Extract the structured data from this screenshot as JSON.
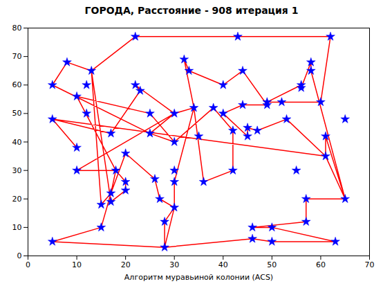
{
  "chart_data": {
    "type": "line",
    "title": "ГОРОДА, Расстояние - 908 итерация 1",
    "xlabel": "Алгоритм муравьиной колонии (ACS)",
    "xlim": [
      0,
      70
    ],
    "ylim": [
      0,
      80
    ],
    "xticks": [
      0,
      10,
      20,
      30,
      40,
      50,
      60,
      70
    ],
    "yticks": [
      0,
      10,
      20,
      30,
      40,
      50,
      60,
      70,
      80
    ],
    "grid": false,
    "series": [
      {
        "type": "line",
        "color": "red",
        "line_style": "solid",
        "x": [
          8,
          13,
          22,
          43,
          62,
          60,
          52,
          49,
          56,
          56,
          58,
          58,
          65,
          61,
          61,
          53,
          47,
          45,
          45,
          40,
          44,
          49,
          44,
          40,
          33,
          32,
          34,
          30,
          25,
          30,
          38,
          42,
          42,
          36,
          34,
          30,
          30,
          28,
          28,
          30,
          27,
          26,
          20,
          17,
          15,
          13,
          17,
          20,
          20,
          18,
          17,
          15,
          5,
          28,
          46,
          50,
          63,
          50,
          46,
          57,
          57,
          65,
          61,
          5,
          10,
          5,
          17,
          23,
          22,
          30,
          10,
          18,
          10,
          25,
          30,
          25,
          5,
          8
        ],
        "values": [
          68,
          65,
          77,
          77,
          77,
          54,
          54,
          54,
          60,
          59,
          68,
          65,
          20,
          42,
          35,
          48,
          44,
          45,
          42,
          50,
          53,
          53,
          65,
          60,
          65,
          69,
          52,
          50,
          43,
          40,
          52,
          44,
          30,
          26,
          52,
          26,
          17,
          12,
          3,
          17,
          20,
          27,
          36,
          22,
          18,
          65,
          19,
          23,
          26,
          30,
          22,
          10,
          5,
          3,
          6,
          5,
          5,
          10,
          10,
          12,
          20,
          20,
          35,
          48,
          38,
          48,
          43,
          58,
          60,
          50,
          30,
          30,
          56,
          50,
          40,
          43,
          60,
          68
        ]
      },
      {
        "type": "scatter",
        "color": "blue",
        "marker": "star",
        "x": [
          5,
          5,
          5,
          8,
          10,
          10,
          10,
          12,
          12,
          13,
          15,
          15,
          17,
          17,
          17,
          18,
          20,
          20,
          20,
          22,
          22,
          23,
          25,
          25,
          26,
          27,
          28,
          30,
          28,
          30,
          30,
          30,
          30,
          32,
          33,
          34,
          35,
          36,
          38,
          40,
          40,
          42,
          42,
          43,
          44,
          44,
          45,
          45,
          46,
          46,
          47,
          49,
          49,
          50,
          50,
          52,
          53,
          55,
          56,
          56,
          57,
          57,
          58,
          58,
          60,
          61,
          61,
          62,
          63,
          65,
          65
        ],
        "values": [
          60,
          48,
          5,
          68,
          56,
          38,
          30,
          60,
          50,
          65,
          18,
          10,
          43,
          22,
          19,
          30,
          36,
          26,
          23,
          77,
          60,
          58,
          50,
          43,
          27,
          20,
          12,
          17,
          3,
          50,
          40,
          30,
          26,
          69,
          65,
          52,
          42,
          26,
          52,
          60,
          50,
          44,
          30,
          77,
          65,
          53,
          45,
          42,
          10,
          6,
          44,
          54,
          53,
          10,
          5,
          54,
          48,
          30,
          60,
          59,
          20,
          12,
          68,
          65,
          54,
          42,
          35,
          77,
          5,
          48,
          20
        ]
      }
    ]
  }
}
